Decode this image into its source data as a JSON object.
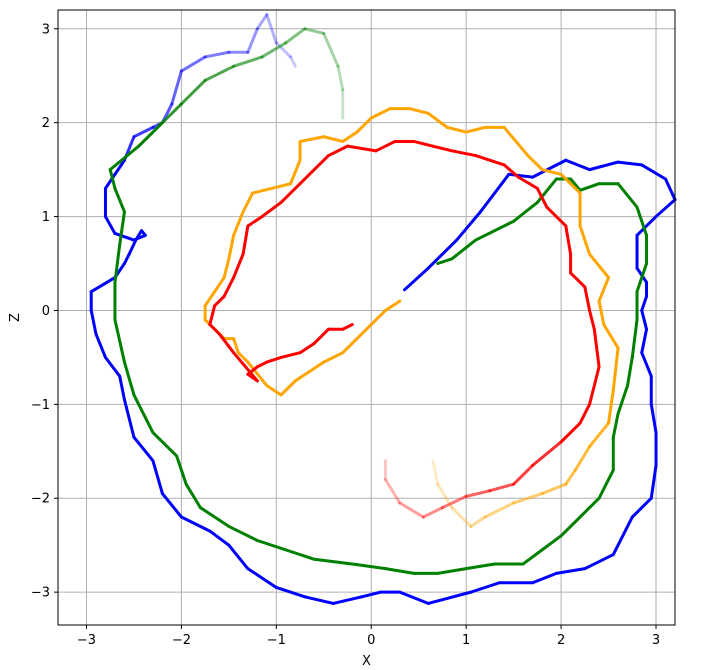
{
  "chart_data": {
    "type": "line",
    "title": "",
    "xlabel": "X",
    "ylabel": "Z",
    "xlim": [
      -3.3,
      3.2
    ],
    "ylim": [
      -3.35,
      3.2
    ],
    "xticks": [
      -3,
      -2,
      -1,
      0,
      1,
      2,
      3
    ],
    "yticks": [
      -3,
      -2,
      -1,
      0,
      1,
      2,
      3
    ],
    "xtick_labels": [
      "−3",
      "−2",
      "−1",
      "0",
      "1",
      "2",
      "3"
    ],
    "ytick_labels": [
      "−3",
      "−2",
      "−1",
      "0",
      "1",
      "2",
      "3"
    ],
    "grid": true,
    "legend": "none",
    "series": [
      {
        "color": "#0000ff",
        "fade": "end",
        "points": [
          [
            0.35,
            0.22
          ],
          [
            0.6,
            0.45
          ],
          [
            0.9,
            0.75
          ],
          [
            1.15,
            1.05
          ],
          [
            1.45,
            1.45
          ],
          [
            1.7,
            1.42
          ],
          [
            2.05,
            1.6
          ],
          [
            2.3,
            1.5
          ],
          [
            2.6,
            1.58
          ],
          [
            2.85,
            1.55
          ],
          [
            3.1,
            1.4
          ],
          [
            3.2,
            1.18
          ],
          [
            3.0,
            1.0
          ],
          [
            2.8,
            0.8
          ],
          [
            2.8,
            0.45
          ],
          [
            2.9,
            0.3
          ],
          [
            2.9,
            0.15
          ],
          [
            2.85,
            0.0
          ],
          [
            2.9,
            -0.2
          ],
          [
            2.85,
            -0.45
          ],
          [
            2.95,
            -0.7
          ],
          [
            2.95,
            -1.0
          ],
          [
            3.0,
            -1.3
          ],
          [
            3.0,
            -1.65
          ],
          [
            2.95,
            -2.0
          ],
          [
            2.75,
            -2.2
          ],
          [
            2.55,
            -2.6
          ],
          [
            2.25,
            -2.75
          ],
          [
            1.95,
            -2.8
          ],
          [
            1.7,
            -2.9
          ],
          [
            1.35,
            -2.9
          ],
          [
            1.05,
            -3.0
          ],
          [
            0.75,
            -3.08
          ],
          [
            0.6,
            -3.12
          ],
          [
            0.3,
            -3.0
          ],
          [
            0.1,
            -3.0
          ],
          [
            -0.1,
            -3.05
          ],
          [
            -0.4,
            -3.12
          ],
          [
            -0.7,
            -3.05
          ],
          [
            -1.0,
            -2.95
          ],
          [
            -1.3,
            -2.75
          ],
          [
            -1.5,
            -2.5
          ],
          [
            -1.7,
            -2.35
          ],
          [
            -2.0,
            -2.2
          ],
          [
            -2.2,
            -1.95
          ],
          [
            -2.3,
            -1.6
          ],
          [
            -2.5,
            -1.35
          ],
          [
            -2.6,
            -0.95
          ],
          [
            -2.65,
            -0.7
          ],
          [
            -2.8,
            -0.5
          ],
          [
            -2.9,
            -0.25
          ],
          [
            -2.95,
            0.0
          ],
          [
            -2.95,
            0.2
          ],
          [
            -2.7,
            0.35
          ],
          [
            -2.6,
            0.5
          ],
          [
            -2.55,
            0.6
          ],
          [
            -2.48,
            0.75
          ],
          [
            -2.42,
            0.85
          ],
          [
            -2.38,
            0.8
          ],
          [
            -2.5,
            0.75
          ],
          [
            -2.7,
            0.82
          ],
          [
            -2.8,
            1.0
          ],
          [
            -2.8,
            1.3
          ],
          [
            -2.6,
            1.6
          ],
          [
            -2.5,
            1.85
          ],
          [
            -2.3,
            1.95
          ],
          [
            -2.2,
            2.0
          ],
          [
            -2.1,
            2.2
          ],
          [
            -2.0,
            2.55
          ],
          [
            -1.75,
            2.7
          ],
          [
            -1.5,
            2.75
          ],
          [
            -1.3,
            2.75
          ],
          [
            -1.2,
            3.0
          ],
          [
            -1.1,
            3.15
          ],
          [
            -1.0,
            2.85
          ],
          [
            -0.85,
            2.7
          ],
          [
            -0.8,
            2.6
          ]
        ]
      },
      {
        "color": "#008000",
        "fade": "end",
        "points": [
          [
            0.7,
            0.5
          ],
          [
            0.85,
            0.55
          ],
          [
            1.1,
            0.75
          ],
          [
            1.5,
            0.95
          ],
          [
            1.75,
            1.15
          ],
          [
            1.95,
            1.4
          ],
          [
            2.1,
            1.4
          ],
          [
            2.2,
            1.28
          ],
          [
            2.4,
            1.35
          ],
          [
            2.6,
            1.35
          ],
          [
            2.8,
            1.1
          ],
          [
            2.9,
            0.8
          ],
          [
            2.9,
            0.5
          ],
          [
            2.8,
            0.2
          ],
          [
            2.8,
            -0.1
          ],
          [
            2.75,
            -0.5
          ],
          [
            2.7,
            -0.8
          ],
          [
            2.6,
            -1.1
          ],
          [
            2.55,
            -1.35
          ],
          [
            2.55,
            -1.7
          ],
          [
            2.4,
            -2.0
          ],
          [
            2.2,
            -2.2
          ],
          [
            2.0,
            -2.4
          ],
          [
            1.8,
            -2.55
          ],
          [
            1.6,
            -2.7
          ],
          [
            1.3,
            -2.7
          ],
          [
            1.0,
            -2.75
          ],
          [
            0.7,
            -2.8
          ],
          [
            0.45,
            -2.8
          ],
          [
            0.15,
            -2.75
          ],
          [
            -0.2,
            -2.7
          ],
          [
            -0.6,
            -2.65
          ],
          [
            -0.9,
            -2.55
          ],
          [
            -1.2,
            -2.45
          ],
          [
            -1.5,
            -2.3
          ],
          [
            -1.8,
            -2.1
          ],
          [
            -1.95,
            -1.85
          ],
          [
            -2.05,
            -1.55
          ],
          [
            -2.3,
            -1.3
          ],
          [
            -2.5,
            -0.9
          ],
          [
            -2.6,
            -0.55
          ],
          [
            -2.7,
            -0.1
          ],
          [
            -2.7,
            0.3
          ],
          [
            -2.65,
            0.7
          ],
          [
            -2.6,
            1.05
          ],
          [
            -2.7,
            1.3
          ],
          [
            -2.75,
            1.5
          ],
          [
            -2.45,
            1.75
          ],
          [
            -2.2,
            2.0
          ],
          [
            -2.0,
            2.2
          ],
          [
            -1.75,
            2.45
          ],
          [
            -1.45,
            2.6
          ],
          [
            -1.15,
            2.7
          ],
          [
            -0.9,
            2.85
          ],
          [
            -0.7,
            3.0
          ],
          [
            -0.5,
            2.95
          ],
          [
            -0.35,
            2.6
          ],
          [
            -0.3,
            2.35
          ],
          [
            -0.3,
            2.05
          ]
        ]
      },
      {
        "color": "#ffa500",
        "fade": "end",
        "points": [
          [
            0.3,
            0.1
          ],
          [
            0.15,
            0.0
          ],
          [
            -0.05,
            -0.2
          ],
          [
            -0.3,
            -0.45
          ],
          [
            -0.5,
            -0.55
          ],
          [
            -0.8,
            -0.75
          ],
          [
            -0.95,
            -0.9
          ],
          [
            -1.1,
            -0.8
          ],
          [
            -1.3,
            -0.55
          ],
          [
            -1.4,
            -0.45
          ],
          [
            -1.45,
            -0.3
          ],
          [
            -1.55,
            -0.3
          ],
          [
            -1.65,
            -0.2
          ],
          [
            -1.75,
            -0.1
          ],
          [
            -1.75,
            0.05
          ],
          [
            -1.65,
            0.2
          ],
          [
            -1.55,
            0.35
          ],
          [
            -1.5,
            0.55
          ],
          [
            -1.45,
            0.8
          ],
          [
            -1.35,
            1.05
          ],
          [
            -1.25,
            1.25
          ],
          [
            -1.05,
            1.3
          ],
          [
            -0.85,
            1.35
          ],
          [
            -0.75,
            1.6
          ],
          [
            -0.75,
            1.8
          ],
          [
            -0.5,
            1.85
          ],
          [
            -0.3,
            1.8
          ],
          [
            -0.15,
            1.9
          ],
          [
            0.0,
            2.05
          ],
          [
            0.2,
            2.15
          ],
          [
            0.4,
            2.15
          ],
          [
            0.6,
            2.1
          ],
          [
            0.8,
            1.95
          ],
          [
            1.0,
            1.9
          ],
          [
            1.2,
            1.95
          ],
          [
            1.4,
            1.95
          ],
          [
            1.65,
            1.65
          ],
          [
            1.8,
            1.5
          ],
          [
            2.0,
            1.45
          ],
          [
            2.2,
            1.25
          ],
          [
            2.2,
            0.9
          ],
          [
            2.3,
            0.6
          ],
          [
            2.5,
            0.35
          ],
          [
            2.4,
            0.1
          ],
          [
            2.45,
            -0.15
          ],
          [
            2.6,
            -0.4
          ],
          [
            2.55,
            -0.85
          ],
          [
            2.5,
            -1.2
          ],
          [
            2.3,
            -1.45
          ],
          [
            2.15,
            -1.7
          ],
          [
            2.05,
            -1.85
          ],
          [
            1.8,
            -1.95
          ],
          [
            1.5,
            -2.05
          ],
          [
            1.2,
            -2.2
          ],
          [
            1.05,
            -2.3
          ],
          [
            0.85,
            -2.1
          ],
          [
            0.7,
            -1.85
          ],
          [
            0.65,
            -1.6
          ]
        ]
      },
      {
        "color": "#ff0000",
        "fade": "end",
        "points": [
          [
            -0.2,
            -0.15
          ],
          [
            -0.3,
            -0.2
          ],
          [
            -0.45,
            -0.2
          ],
          [
            -0.6,
            -0.35
          ],
          [
            -0.75,
            -0.45
          ],
          [
            -0.95,
            -0.5
          ],
          [
            -1.1,
            -0.55
          ],
          [
            -1.2,
            -0.6
          ],
          [
            -1.3,
            -0.68
          ],
          [
            -1.2,
            -0.75
          ],
          [
            -1.45,
            -0.45
          ],
          [
            -1.6,
            -0.25
          ],
          [
            -1.7,
            -0.15
          ],
          [
            -1.65,
            0.05
          ],
          [
            -1.55,
            0.15
          ],
          [
            -1.45,
            0.35
          ],
          [
            -1.35,
            0.6
          ],
          [
            -1.3,
            0.9
          ],
          [
            -1.15,
            1.0
          ],
          [
            -0.95,
            1.15
          ],
          [
            -0.75,
            1.35
          ],
          [
            -0.6,
            1.5
          ],
          [
            -0.45,
            1.65
          ],
          [
            -0.25,
            1.75
          ],
          [
            0.05,
            1.7
          ],
          [
            0.25,
            1.8
          ],
          [
            0.45,
            1.8
          ],
          [
            0.65,
            1.75
          ],
          [
            0.85,
            1.7
          ],
          [
            1.1,
            1.65
          ],
          [
            1.4,
            1.55
          ],
          [
            1.55,
            1.42
          ],
          [
            1.75,
            1.3
          ],
          [
            1.85,
            1.1
          ],
          [
            2.05,
            0.9
          ],
          [
            2.1,
            0.6
          ],
          [
            2.1,
            0.4
          ],
          [
            2.25,
            0.25
          ],
          [
            2.3,
            0.0
          ],
          [
            2.35,
            -0.2
          ],
          [
            2.4,
            -0.6
          ],
          [
            2.3,
            -1.0
          ],
          [
            2.2,
            -1.2
          ],
          [
            2.0,
            -1.4
          ],
          [
            1.7,
            -1.65
          ],
          [
            1.5,
            -1.85
          ],
          [
            1.25,
            -1.92
          ],
          [
            1.0,
            -1.98
          ],
          [
            0.75,
            -2.1
          ],
          [
            0.55,
            -2.2
          ],
          [
            0.3,
            -2.05
          ],
          [
            0.15,
            -1.8
          ],
          [
            0.15,
            -1.6
          ]
        ]
      }
    ]
  }
}
